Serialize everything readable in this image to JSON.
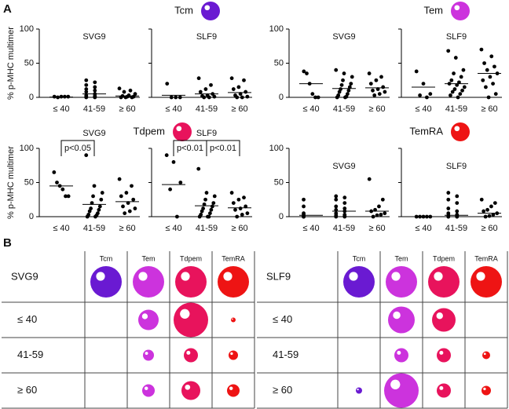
{
  "chart_data": {
    "type": "strip",
    "label": "A",
    "y_label": "% p-MHC multimer",
    "categories": [
      "≤ 40",
      "41-59",
      "≥ 60"
    ],
    "ylim": [
      0,
      100
    ],
    "yticks": [
      0,
      50,
      100
    ],
    "cell_types": [
      {
        "name": "Tcm",
        "color": "#6a1ad2"
      },
      {
        "name": "Tem",
        "color": "#cc33dd"
      },
      {
        "name": "Tdpem",
        "color": "#e8135c"
      },
      {
        "name": "TemRA",
        "color": "#ee1414"
      }
    ],
    "groups": [
      {
        "subplots": [
          {
            "title": "SVG9",
            "values": [
              [
                1,
                1,
                1,
                0,
                1
              ],
              [
                25,
                22,
                18,
                15,
                12,
                10,
                8,
                5,
                3,
                2,
                1,
                1,
                0,
                0
              ],
              [
                13,
                10,
                8,
                5,
                3,
                2,
                1,
                1,
                0,
                0,
                0
              ]
            ],
            "medians": [
              0.5,
              5,
              2
            ]
          },
          {
            "title": "SLF9",
            "values": [
              [
                20,
                0,
                0,
                0
              ],
              [
                28,
                18,
                12,
                8,
                5,
                3,
                2,
                1,
                0,
                0
              ],
              [
                28,
                25,
                15,
                12,
                8,
                5,
                3,
                1,
                0,
                0
              ]
            ],
            "medians": [
              3,
              5,
              7
            ]
          }
        ]
      },
      {
        "subplots": [
          {
            "title": "SVG9",
            "values": [
              [
                38,
                35,
                20,
                5,
                0,
                0
              ],
              [
                40,
                35,
                30,
                25,
                20,
                18,
                15,
                12,
                10,
                8,
                5,
                3,
                1,
                0,
                0
              ],
              [
                35,
                30,
                25,
                20,
                15,
                12,
                10,
                8,
                5,
                3
              ]
            ],
            "medians": [
              20,
              13,
              14
            ]
          },
          {
            "title": "SLF9",
            "values": [
              [
                38,
                20,
                5,
                3,
                0
              ],
              [
                68,
                58,
                40,
                35,
                30,
                25,
                22,
                20,
                18,
                15,
                12,
                10,
                8,
                5,
                3,
                0
              ],
              [
                70,
                60,
                50,
                45,
                40,
                35,
                30,
                25,
                20,
                15,
                5,
                0
              ]
            ],
            "medians": [
              15,
              20,
              35
            ]
          }
        ]
      },
      {
        "subplots": [
          {
            "title": "SVG9",
            "values": [
              [
                65,
                50,
                45,
                40,
                30,
                30
              ],
              [
                90,
                45,
                35,
                30,
                25,
                20,
                15,
                12,
                10,
                8,
                5,
                3,
                2,
                0,
                0
              ],
              [
                55,
                45,
                35,
                30,
                25,
                20,
                15,
                12,
                8,
                5
              ]
            ],
            "medians": [
              45,
              18,
              22
            ]
          },
          {
            "title": "SLF9",
            "values": [
              [
                90,
                80,
                50,
                40,
                0
              ],
              [
                70,
                35,
                30,
                25,
                20,
                18,
                15,
                12,
                10,
                8,
                5,
                3,
                0,
                0,
                0
              ],
              [
                35,
                28,
                25,
                20,
                15,
                12,
                10,
                5,
                3,
                0
              ]
            ],
            "medians": [
              47,
              16,
              13
            ]
          }
        ],
        "annotations": [
          {
            "subplot": 0,
            "from": 0,
            "to": 1,
            "text": "p<0.05"
          },
          {
            "subplot": 1,
            "from": 0,
            "to": 1,
            "text": "p<0.01"
          },
          {
            "subplot": 1,
            "from": 1,
            "to": 2,
            "text": "p<0.01"
          }
        ]
      },
      {
        "subplots": [
          {
            "title": "SVG9",
            "values": [
              [
                25,
                15,
                5,
                3,
                0,
                0,
                0
              ],
              [
                30,
                28,
                25,
                20,
                15,
                12,
                10,
                8,
                5,
                3,
                2,
                1,
                0,
                0
              ],
              [
                55,
                25,
                15,
                10,
                8,
                5,
                3,
                2,
                0
              ]
            ],
            "medians": [
              2,
              8,
              8
            ]
          },
          {
            "title": "SLF9",
            "values": [
              [
                0,
                0,
                0,
                0,
                0
              ],
              [
                35,
                30,
                25,
                20,
                12,
                8,
                5,
                3,
                2,
                1,
                0,
                0,
                0,
                0
              ],
              [
                25,
                20,
                15,
                10,
                8,
                5,
                3,
                1,
                0
              ]
            ],
            "medians": [
              0,
              2,
              5
            ]
          }
        ]
      }
    ],
    "tables": {
      "label": "B",
      "items": [
        {
          "title": "SVG9",
          "sizes": [
            [
              null,
              13,
              22,
              3
            ],
            [
              null,
              7,
              9,
              6
            ],
            [
              null,
              8,
              12,
              8
            ]
          ]
        },
        {
          "title": "SLF9",
          "sizes": [
            [
              null,
              17,
              15,
              null
            ],
            [
              null,
              9,
              9,
              5
            ],
            [
              4,
              22,
              9,
              6
            ]
          ]
        }
      ]
    }
  }
}
